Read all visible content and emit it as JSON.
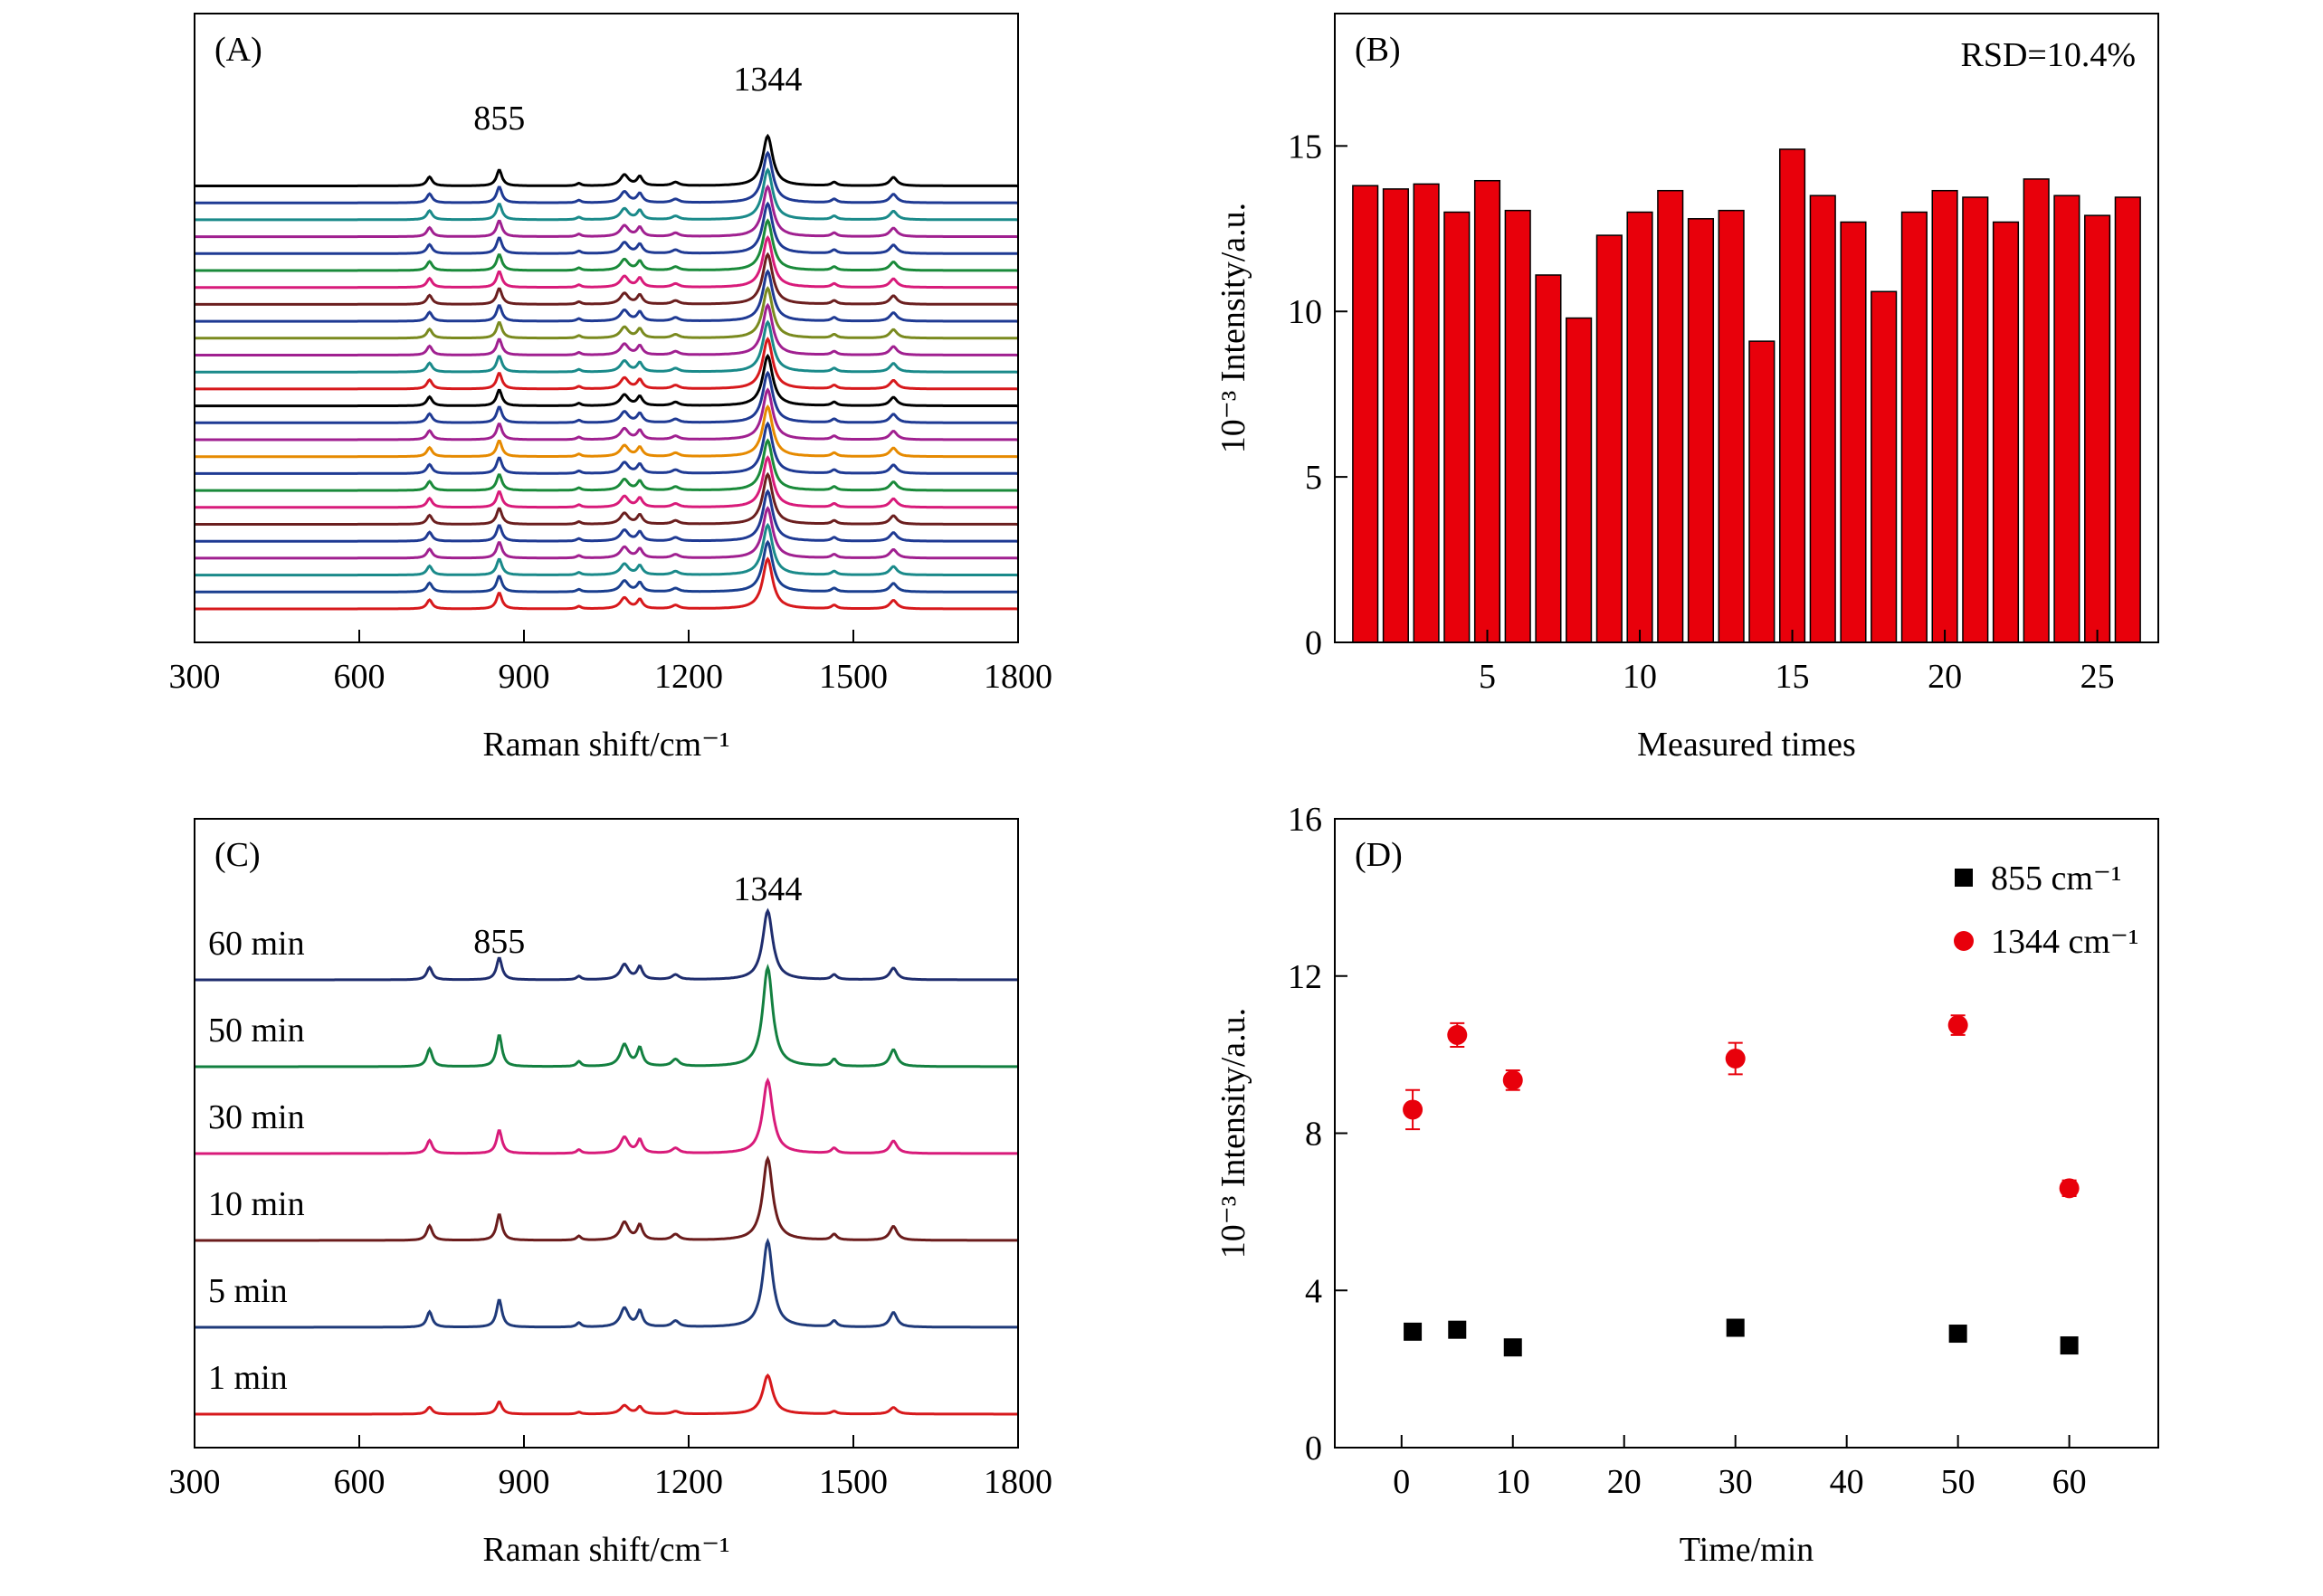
{
  "chart_data": [
    {
      "panel": "(A)",
      "type": "line",
      "xlabel": "Raman shift/cm⁻¹",
      "ylabel": "",
      "xlim": [
        300,
        1800
      ],
      "xticks": [
        300,
        600,
        900,
        1200,
        1500,
        1800
      ],
      "peaks": [
        {
          "x": 855,
          "label": "855"
        },
        {
          "x": 1344,
          "label": "1344"
        }
      ],
      "spectrum_bands": [
        {
          "center": 728,
          "amp": 0.18,
          "width": 6
        },
        {
          "center": 855,
          "amp": 0.32,
          "width": 6
        },
        {
          "center": 1000,
          "amp": 0.05,
          "width": 5
        },
        {
          "center": 1083,
          "amp": 0.22,
          "width": 9
        },
        {
          "center": 1111,
          "amp": 0.18,
          "width": 6
        },
        {
          "center": 1176,
          "amp": 0.07,
          "width": 8
        },
        {
          "center": 1344,
          "amp": 1.0,
          "width": 11
        },
        {
          "center": 1465,
          "amp": 0.07,
          "width": 6
        },
        {
          "center": 1573,
          "amp": 0.17,
          "width": 8
        }
      ],
      "series_count": 26,
      "series_colors": [
        "#d7191c",
        "#1a3f8f",
        "#1a8a8a",
        "#a02090",
        "#1f3a93",
        "#6b1f1f",
        "#d81b7a",
        "#1a8a3a",
        "#1f3a93",
        "#e68a00",
        "#a02090",
        "#1f3a93",
        "#000000",
        "#d7191c",
        "#1a8a8a",
        "#a02090",
        "#7a8a1f",
        "#1f3a93",
        "#6b1f1f",
        "#d81b7a",
        "#1a8a3a",
        "#1f3a93",
        "#a02090",
        "#1a8a8a",
        "#1f3a93",
        "#000000"
      ]
    },
    {
      "panel": "(B)",
      "type": "bar",
      "xlabel": "Measured times",
      "ylabel": "10⁻³ Intensity/a.u.",
      "annotation": "RSD=10.4%",
      "xlim": [
        0,
        27
      ],
      "ylim": [
        0,
        19
      ],
      "xticks": [
        5,
        10,
        15,
        20,
        25
      ],
      "yticks": [
        0,
        5,
        10,
        15
      ],
      "bar_color": "#e8000b",
      "categories": [
        1,
        2,
        3,
        4,
        5,
        6,
        7,
        8,
        9,
        10,
        11,
        12,
        13,
        14,
        15,
        16,
        17,
        18,
        19,
        20,
        21,
        22,
        23,
        24,
        25,
        26
      ],
      "values": [
        13.8,
        13.7,
        13.85,
        13.0,
        13.95,
        13.05,
        11.1,
        9.8,
        12.3,
        13.0,
        13.65,
        12.8,
        13.05,
        9.1,
        14.9,
        13.5,
        12.7,
        10.6,
        13.0,
        13.65,
        13.45,
        12.7,
        14.0,
        13.5,
        12.9,
        13.45
      ]
    },
    {
      "panel": "(C)",
      "type": "line",
      "xlabel": "Raman shift/cm⁻¹",
      "ylabel": "",
      "xlim": [
        300,
        1800
      ],
      "xticks": [
        300,
        600,
        900,
        1200,
        1500,
        1800
      ],
      "peaks": [
        {
          "x": 855,
          "label": "855"
        },
        {
          "x": 1344,
          "label": "1344"
        }
      ],
      "series": [
        {
          "name": "1 min",
          "color": "#d7191c",
          "scale": 0.45
        },
        {
          "name": "5 min",
          "color": "#1f3a7a",
          "scale": 1.0
        },
        {
          "name": "10 min",
          "color": "#6b1c1c",
          "scale": 0.95
        },
        {
          "name": "30 min",
          "color": "#d81b7a",
          "scale": 0.85
        },
        {
          "name": "50 min",
          "color": "#138040",
          "scale": 1.15
        },
        {
          "name": "60 min",
          "color": "#1f2d6e",
          "scale": 0.8
        }
      ]
    },
    {
      "panel": "(D)",
      "type": "scatter",
      "xlabel": "Time/min",
      "ylabel": "10⁻³ Intensity/a.u.",
      "xlim": [
        -6,
        68
      ],
      "ylim": [
        0,
        16
      ],
      "xticks": [
        0,
        10,
        20,
        30,
        40,
        50,
        60
      ],
      "yticks": [
        0,
        4,
        8,
        12,
        16
      ],
      "legend_position": "top-right",
      "series": [
        {
          "name": "855 cm⁻¹",
          "marker": "square",
          "color": "#000000",
          "x": [
            1,
            5,
            10,
            30,
            50,
            60
          ],
          "y": [
            2.95,
            3.0,
            2.55,
            3.05,
            2.9,
            2.6
          ],
          "err": [
            0,
            0,
            0,
            0,
            0,
            0
          ]
        },
        {
          "name": "1344 cm⁻¹",
          "marker": "circle",
          "color": "#e8000b",
          "x": [
            1,
            5,
            10,
            30,
            50,
            60
          ],
          "y": [
            8.6,
            10.5,
            9.35,
            9.9,
            10.75,
            6.6
          ],
          "err": [
            0.5,
            0.3,
            0.25,
            0.4,
            0.25,
            0.2
          ]
        }
      ]
    }
  ]
}
